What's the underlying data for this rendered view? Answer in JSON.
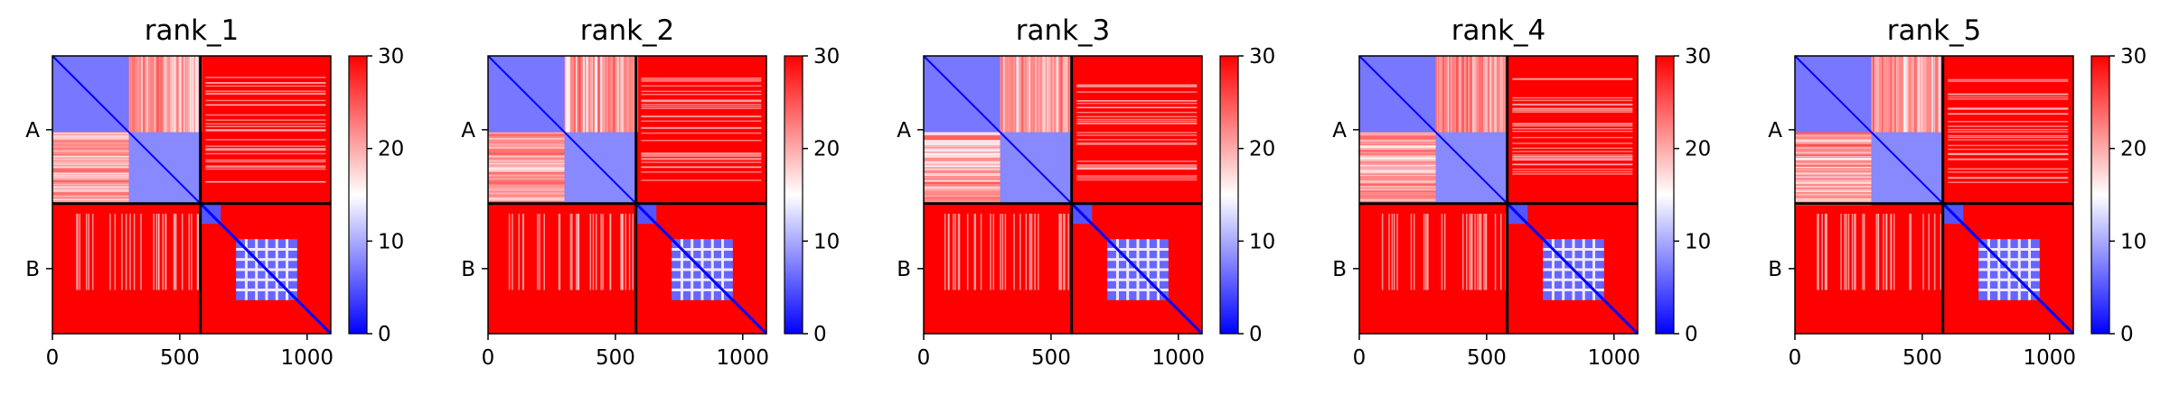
{
  "figure": {
    "background": "#ffffff"
  },
  "colormap": {
    "name": "bwr",
    "low_color": "#0000ff",
    "mid_color": "#ffffff",
    "high_color": "#ff0000",
    "vmin": 0,
    "vmax": 30
  },
  "chart_data": [
    {
      "type": "heatmap",
      "title": "rank_1",
      "xlabel": "",
      "ylabel": "",
      "xlim": [
        0,
        1093
      ],
      "xticks": [
        0,
        500,
        1000
      ],
      "xtick_labels": [
        "0",
        "500",
        "1000"
      ],
      "ytick_labels": [
        "A",
        "B"
      ],
      "chain_boundary": 581,
      "colorbar": {
        "range": [
          0,
          30
        ],
        "ticks": [
          0,
          10,
          20,
          30
        ],
        "tick_labels": [
          "0",
          "10",
          "20",
          "30"
        ]
      }
    },
    {
      "type": "heatmap",
      "title": "rank_2",
      "xlabel": "",
      "ylabel": "",
      "xlim": [
        0,
        1093
      ],
      "xticks": [
        0,
        500,
        1000
      ],
      "xtick_labels": [
        "0",
        "500",
        "1000"
      ],
      "ytick_labels": [
        "A",
        "B"
      ],
      "chain_boundary": 581,
      "colorbar": {
        "range": [
          0,
          30
        ],
        "ticks": [
          0,
          10,
          20,
          30
        ],
        "tick_labels": [
          "0",
          "10",
          "20",
          "30"
        ]
      }
    },
    {
      "type": "heatmap",
      "title": "rank_3",
      "xlabel": "",
      "ylabel": "",
      "xlim": [
        0,
        1093
      ],
      "xticks": [
        0,
        500,
        1000
      ],
      "xtick_labels": [
        "0",
        "500",
        "1000"
      ],
      "ytick_labels": [
        "A",
        "B"
      ],
      "chain_boundary": 581,
      "colorbar": {
        "range": [
          0,
          30
        ],
        "ticks": [
          0,
          10,
          20,
          30
        ],
        "tick_labels": [
          "0",
          "10",
          "20",
          "30"
        ]
      }
    },
    {
      "type": "heatmap",
      "title": "rank_4",
      "xlabel": "",
      "ylabel": "",
      "xlim": [
        0,
        1093
      ],
      "xticks": [
        0,
        500,
        1000
      ],
      "xtick_labels": [
        "0",
        "500",
        "1000"
      ],
      "ytick_labels": [
        "A",
        "B"
      ],
      "chain_boundary": 581,
      "colorbar": {
        "range": [
          0,
          30
        ],
        "ticks": [
          0,
          10,
          20,
          30
        ],
        "tick_labels": [
          "0",
          "10",
          "20",
          "30"
        ]
      }
    },
    {
      "type": "heatmap",
      "title": "rank_5",
      "xlabel": "",
      "ylabel": "",
      "xlim": [
        0,
        1093
      ],
      "xticks": [
        0,
        500,
        1000
      ],
      "xtick_labels": [
        "0",
        "500",
        "1000"
      ],
      "ytick_labels": [
        "A",
        "B"
      ],
      "chain_boundary": 581,
      "colorbar": {
        "range": [
          0,
          30
        ],
        "ticks": [
          0,
          10,
          20,
          30
        ],
        "tick_labels": [
          "0",
          "10",
          "20",
          "30"
        ]
      }
    }
  ]
}
